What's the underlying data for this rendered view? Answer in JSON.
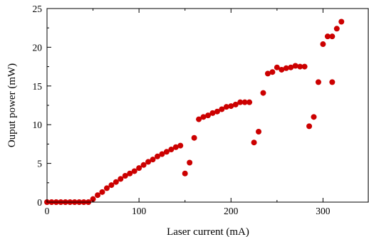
{
  "chart_data": {
    "type": "scatter",
    "title": "",
    "xlabel": "Laser current (mA)",
    "ylabel": "Ouput power (mW)",
    "xlim": [
      0,
      350
    ],
    "ylim": [
      0,
      25
    ],
    "x_ticks": [
      0,
      100,
      200,
      300
    ],
    "x_minor_ticks": [
      50,
      150,
      250
    ],
    "y_ticks": [
      0,
      5,
      10,
      15,
      20,
      25
    ],
    "grid": false,
    "legend": "none",
    "marker_color": "#cc0000",
    "series": [
      {
        "points": [
          [
            0,
            0
          ],
          [
            5,
            0
          ],
          [
            10,
            0
          ],
          [
            15,
            0
          ],
          [
            20,
            0
          ],
          [
            25,
            0
          ],
          [
            30,
            0
          ],
          [
            35,
            0
          ],
          [
            40,
            0
          ],
          [
            45,
            0
          ],
          [
            50,
            0.4
          ],
          [
            55,
            0.9
          ],
          [
            60,
            1.3
          ],
          [
            65,
            1.8
          ],
          [
            70,
            2.2
          ],
          [
            75,
            2.6
          ],
          [
            80,
            3.0
          ],
          [
            85,
            3.4
          ],
          [
            90,
            3.7
          ],
          [
            95,
            4.0
          ],
          [
            100,
            4.4
          ],
          [
            105,
            4.8
          ],
          [
            110,
            5.2
          ],
          [
            115,
            5.5
          ],
          [
            120,
            5.9
          ],
          [
            125,
            6.2
          ],
          [
            130,
            6.5
          ],
          [
            135,
            6.8
          ],
          [
            140,
            7.1
          ],
          [
            145,
            7.3
          ],
          [
            150,
            3.7
          ],
          [
            155,
            5.1
          ],
          [
            160,
            8.3
          ],
          [
            165,
            10.7
          ],
          [
            170,
            11.0
          ],
          [
            175,
            11.2
          ],
          [
            180,
            11.5
          ],
          [
            185,
            11.7
          ],
          [
            190,
            12.0
          ],
          [
            195,
            12.3
          ],
          [
            200,
            12.4
          ],
          [
            205,
            12.6
          ],
          [
            210,
            12.9
          ],
          [
            215,
            12.9
          ],
          [
            220,
            12.9
          ],
          [
            225,
            7.7
          ],
          [
            230,
            9.1
          ],
          [
            235,
            14.1
          ],
          [
            240,
            16.6
          ],
          [
            245,
            16.8
          ],
          [
            250,
            17.4
          ],
          [
            255,
            17.1
          ],
          [
            260,
            17.3
          ],
          [
            265,
            17.4
          ],
          [
            270,
            17.6
          ],
          [
            275,
            17.5
          ],
          [
            280,
            17.5
          ],
          [
            285,
            9.8
          ],
          [
            290,
            11.0
          ],
          [
            295,
            15.5
          ],
          [
            300,
            20.4
          ],
          [
            305,
            21.4
          ],
          [
            310,
            21.4
          ],
          [
            310,
            15.5
          ],
          [
            315,
            22.4
          ],
          [
            320,
            23.3
          ]
        ]
      }
    ]
  }
}
